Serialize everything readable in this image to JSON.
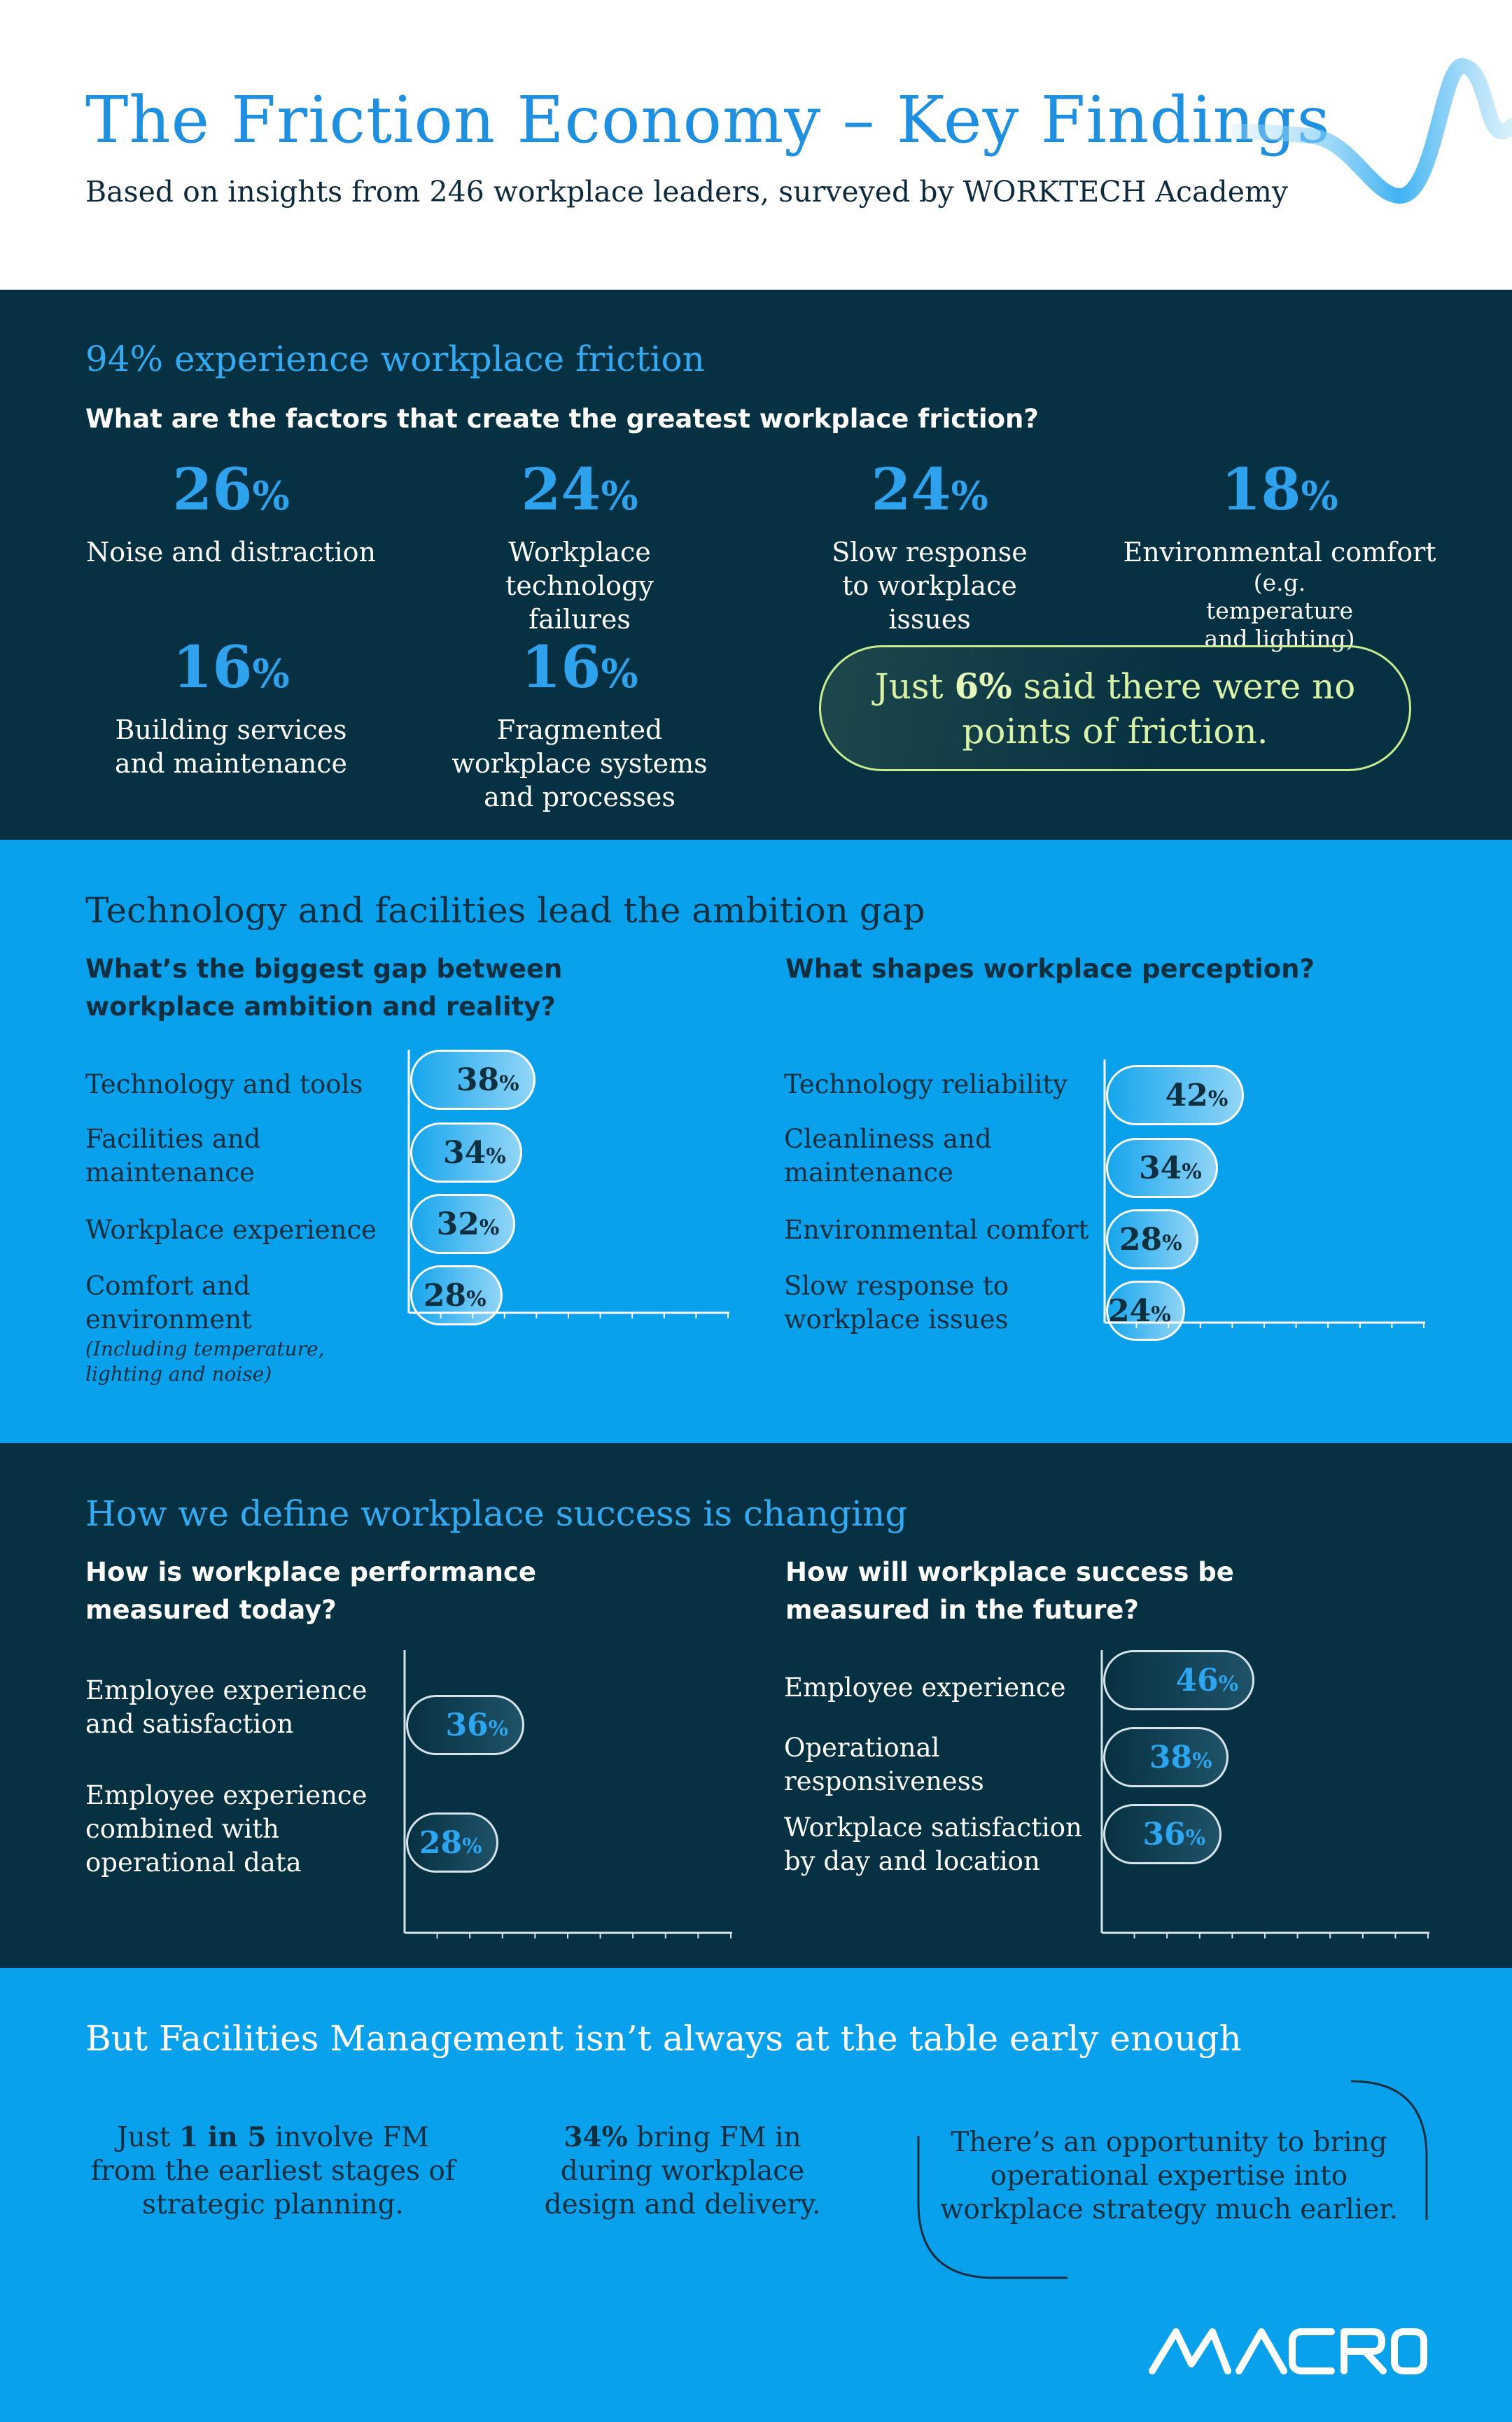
{
  "header": {
    "title": "The Friction Economy – Key Findings",
    "subtitle": "Based on insights from 246 workplace leaders, surveyed by WORKTECH Academy"
  },
  "friction": {
    "kicker": "94% experience workplace friction",
    "question": "What are the factors that create the greatest workplace friction?",
    "stats": [
      {
        "value": "26",
        "unit": "%",
        "label": "Noise and distraction"
      },
      {
        "value": "24",
        "unit": "%",
        "label": "Workplace technology failures"
      },
      {
        "value": "24",
        "unit": "%",
        "label": "Slow response to workplace issues"
      },
      {
        "value": "18",
        "unit": "%",
        "label": "Environmental comfort",
        "sub": "(e.g. temperature and lighting)"
      },
      {
        "value": "16",
        "unit": "%",
        "label": "Building services and maintenance"
      },
      {
        "value": "16",
        "unit": "%",
        "label": "Fragmented workplace systems and processes"
      }
    ],
    "callout": {
      "pre": "Just ",
      "bold": "6%",
      "post": " said there were no points of friction."
    }
  },
  "ambition": {
    "kicker": "Technology and facilities lead the ambition gap",
    "left_question": "What’s the biggest gap between workplace ambition and reality?",
    "right_question": "What shapes workplace perception?",
    "left_rows": [
      {
        "label": "Technology and tools",
        "value": 38
      },
      {
        "label": "Facilities and maintenance",
        "value": 34
      },
      {
        "label": "Workplace experience",
        "value": 32
      },
      {
        "label": "Comfort and environment",
        "note": "(Including temperature, lighting and noise)",
        "value": 28
      }
    ],
    "right_rows": [
      {
        "label": "Technology reliability",
        "value": 42
      },
      {
        "label": "Cleanliness and maintenance",
        "value": 34
      },
      {
        "label": "Environmental comfort",
        "value": 28
      },
      {
        "label": "Slow response to workplace issues",
        "value": 24
      }
    ],
    "pct_symbol": "%"
  },
  "success": {
    "kicker": "How we define workplace success is changing",
    "left_question": "How is workplace performance measured today?",
    "right_question": "How will workplace success be measured in the future?",
    "left_rows": [
      {
        "label": "Employee experience and satisfaction",
        "value": 36
      },
      {
        "label": "Employee experience combined with operational data",
        "value": 28
      }
    ],
    "right_rows": [
      {
        "label": "Employee experience",
        "value": 46
      },
      {
        "label": "Operational responsiveness",
        "value": 38
      },
      {
        "label": "Workplace satisfaction by day and location",
        "value": 36
      }
    ]
  },
  "fm": {
    "kicker": "But Facilities Management isn’t always at the table early enough",
    "items": [
      {
        "pre": "Just ",
        "bold": "1 in 5",
        "post": " involve FM from the earliest stages of strategic planning."
      },
      {
        "pre": "",
        "bold": "34%",
        "post": " bring FM in during workplace design and delivery."
      }
    ],
    "opportunity": "There’s an opportunity to bring operational expertise into workplace strategy much earlier."
  },
  "brand": {
    "logo": "MACRO",
    "accent": "#1f8fe0",
    "dark": "#063142",
    "light_blue": "#0aa1ec",
    "lime": "#c8ec8f"
  }
}
